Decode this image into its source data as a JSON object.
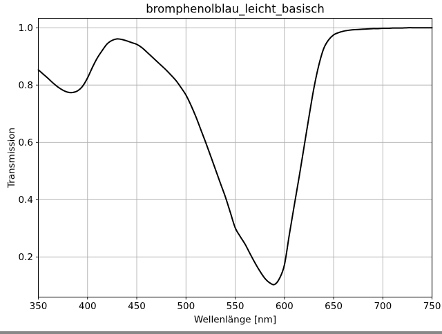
{
  "figure": {
    "background": "#ffffff"
  },
  "chart_data": {
    "type": "line",
    "title": "bromphenolblau_leicht_basisch",
    "xlabel": "Wellenlänge [nm]",
    "ylabel": "Transmission",
    "xlim": [
      350,
      750
    ],
    "ylim": [
      0.06,
      1.033
    ],
    "xticks": [
      350,
      400,
      450,
      500,
      550,
      600,
      650,
      700,
      750
    ],
    "xtick_labels": [
      "350",
      "400",
      "450",
      "500",
      "550",
      "600",
      "650",
      "700",
      "750"
    ],
    "yticks": [
      0.2,
      0.4,
      0.6,
      0.8,
      1.0
    ],
    "ytick_labels": [
      "0.2",
      "0.4",
      "0.6",
      "0.8",
      "1.0"
    ],
    "grid": true,
    "legend": false,
    "line_color": "#000000",
    "line_width": 2,
    "grid_color": "#b0b0b0",
    "spine_color": "#000000",
    "series": [
      {
        "name": "Transmission",
        "x": [
          350,
          355,
          360,
          365,
          370,
          375,
          380,
          385,
          390,
          395,
          400,
          405,
          410,
          415,
          420,
          425,
          430,
          435,
          440,
          445,
          450,
          455,
          460,
          465,
          470,
          475,
          480,
          485,
          490,
          495,
          500,
          505,
          510,
          515,
          520,
          525,
          530,
          535,
          540,
          545,
          550,
          555,
          560,
          565,
          570,
          575,
          580,
          585,
          590,
          595,
          600,
          605,
          610,
          615,
          620,
          625,
          630,
          635,
          640,
          645,
          650,
          655,
          660,
          665,
          670,
          675,
          680,
          685,
          690,
          695,
          700,
          705,
          710,
          715,
          720,
          725,
          730,
          735,
          740,
          745,
          750
        ],
        "y": [
          0.853,
          0.838,
          0.823,
          0.807,
          0.793,
          0.782,
          0.775,
          0.774,
          0.78,
          0.796,
          0.825,
          0.862,
          0.895,
          0.921,
          0.944,
          0.956,
          0.961,
          0.959,
          0.954,
          0.948,
          0.942,
          0.931,
          0.916,
          0.9,
          0.884,
          0.868,
          0.852,
          0.834,
          0.815,
          0.791,
          0.765,
          0.73,
          0.69,
          0.645,
          0.6,
          0.553,
          0.505,
          0.457,
          0.41,
          0.356,
          0.302,
          0.272,
          0.245,
          0.212,
          0.18,
          0.151,
          0.126,
          0.11,
          0.104,
          0.125,
          0.172,
          0.278,
          0.38,
          0.48,
          0.585,
          0.69,
          0.79,
          0.87,
          0.928,
          0.958,
          0.975,
          0.983,
          0.988,
          0.991,
          0.993,
          0.994,
          0.995,
          0.996,
          0.997,
          0.997,
          0.998,
          0.998,
          0.999,
          0.999,
          0.999,
          1.0,
          1.0,
          1.0,
          1.0,
          1.0,
          1.0
        ]
      }
    ]
  }
}
